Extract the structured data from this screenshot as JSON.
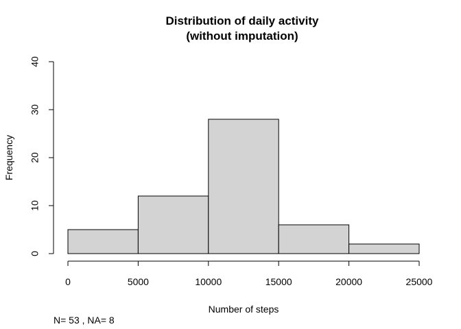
{
  "chart_data": {
    "type": "bar",
    "subtype": "histogram",
    "title": "Distribution of daily activity",
    "subtitle": "(without imputation)",
    "xlabel": "Number of steps",
    "ylabel": "Frequency",
    "bins": [
      {
        "from": 0,
        "to": 5000,
        "count": 5
      },
      {
        "from": 5000,
        "to": 10000,
        "count": 12
      },
      {
        "from": 10000,
        "to": 15000,
        "count": 28
      },
      {
        "from": 15000,
        "to": 20000,
        "count": 6
      },
      {
        "from": 20000,
        "to": 25000,
        "count": 2
      }
    ],
    "xlim": [
      0,
      25000
    ],
    "ylim": [
      0,
      40
    ],
    "x_ticks": [
      0,
      5000,
      10000,
      15000,
      20000,
      25000
    ],
    "x_tick_labels": [
      "0",
      "5000",
      "10000",
      "15000",
      "20000",
      "25000"
    ],
    "y_ticks": [
      0,
      10,
      20,
      30,
      40
    ],
    "y_tick_labels": [
      "0",
      "10",
      "20",
      "30",
      "40"
    ],
    "bar_fill": "#d3d3d3",
    "bar_stroke": "#000000",
    "grid": false,
    "annotation": "N= 53 , NA= 8"
  }
}
